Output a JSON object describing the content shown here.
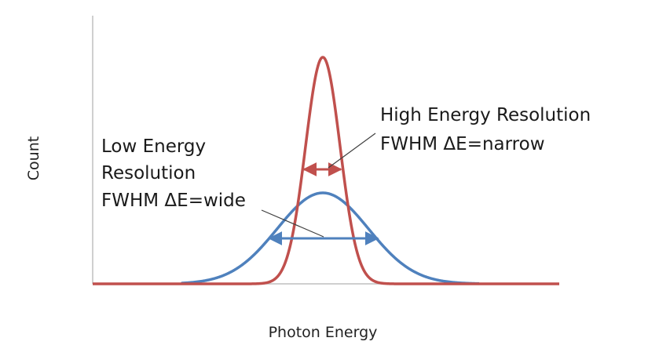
{
  "axes": {
    "x_label": "Photon Energy",
    "y_label": "Count"
  },
  "annotations": {
    "high": {
      "line1": "High Energy Resolution",
      "line2": "FWHM ΔE=narrow"
    },
    "low": {
      "line1": "Low Energy",
      "line2": "Resolution",
      "line3": "FWHM ΔE=wide"
    }
  },
  "colors": {
    "narrow_peak": "#c0504d",
    "wide_peak": "#4f81bd",
    "axis": "#bfbfbf",
    "leader_line": "#404040"
  }
}
